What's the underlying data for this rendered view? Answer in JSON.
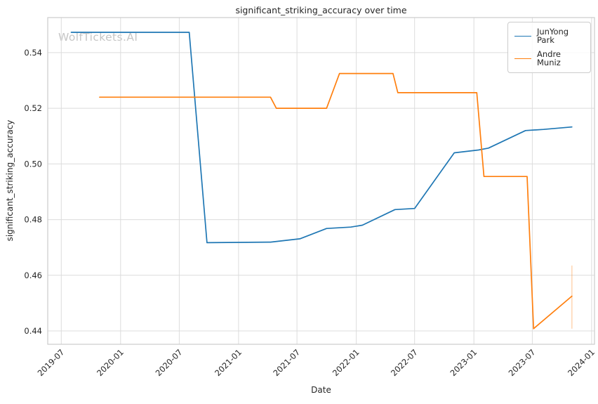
{
  "chart_data": {
    "type": "line",
    "title": "significant_striking_accuracy over time",
    "xlabel": "Date",
    "ylabel": "significant_striking_accuracy",
    "watermark": "WolfTickets.AI",
    "grid": true,
    "legend_position": "upper right",
    "xlim": [
      "2019-05-20",
      "2024-01-10"
    ],
    "ylim": [
      0.4352,
      0.5526
    ],
    "x_ticks": [
      "2019-07",
      "2020-01",
      "2020-07",
      "2021-01",
      "2021-07",
      "2022-01",
      "2022-07",
      "2023-01",
      "2023-07",
      "2024-01"
    ],
    "y_ticks": [
      0.44,
      0.46,
      0.48,
      0.5,
      0.52,
      0.54
    ],
    "y_tick_labels": [
      "0.44",
      "0.46",
      "0.48",
      "0.50",
      "0.52",
      "0.54"
    ],
    "style": {
      "grid_color": "#dcdcdc",
      "frame_color": "#cccccc",
      "tick_color": "#262626",
      "background": "#ffffff"
    },
    "series": [
      {
        "name": "JunYong Park",
        "color": "#1f77b4",
        "points": [
          [
            "2019-08-01",
            0.5473
          ],
          [
            "2020-08-01",
            0.5473
          ],
          [
            "2020-09-25",
            0.4717
          ],
          [
            "2021-04-10",
            0.4719
          ],
          [
            "2021-07-10",
            0.4731
          ],
          [
            "2021-10-01",
            0.4768
          ],
          [
            "2021-12-15",
            0.4773
          ],
          [
            "2022-01-20",
            0.478
          ],
          [
            "2022-05-01",
            0.4836
          ],
          [
            "2022-07-01",
            0.484
          ],
          [
            "2022-11-01",
            0.504
          ],
          [
            "2023-01-15",
            0.505
          ],
          [
            "2023-02-15",
            0.5057
          ],
          [
            "2023-06-10",
            0.512
          ],
          [
            "2023-08-05",
            0.5124
          ],
          [
            "2023-11-01",
            0.5133
          ]
        ]
      },
      {
        "name": "Andre Muniz",
        "color": "#ff7f0e",
        "points": [
          [
            "2019-10-28",
            0.524
          ],
          [
            "2021-04-10",
            0.524
          ],
          [
            "2021-04-28",
            0.52
          ],
          [
            "2021-10-01",
            0.52
          ],
          [
            "2021-11-10",
            0.5325
          ],
          [
            "2022-04-25",
            0.5325
          ],
          [
            "2022-05-10",
            0.5256
          ],
          [
            "2023-01-10",
            0.5256
          ],
          [
            "2023-02-01",
            0.4955
          ],
          [
            "2023-06-15",
            0.4955
          ],
          [
            "2023-07-05",
            0.4408
          ],
          [
            "2023-11-01",
            0.4525
          ]
        ]
      }
    ],
    "annotations": [
      {
        "type": "vline_segment",
        "x": "2023-11-01",
        "y0": 0.4408,
        "y1": 0.4635,
        "color": "#ff7f0e",
        "opacity": 0.3
      }
    ]
  }
}
